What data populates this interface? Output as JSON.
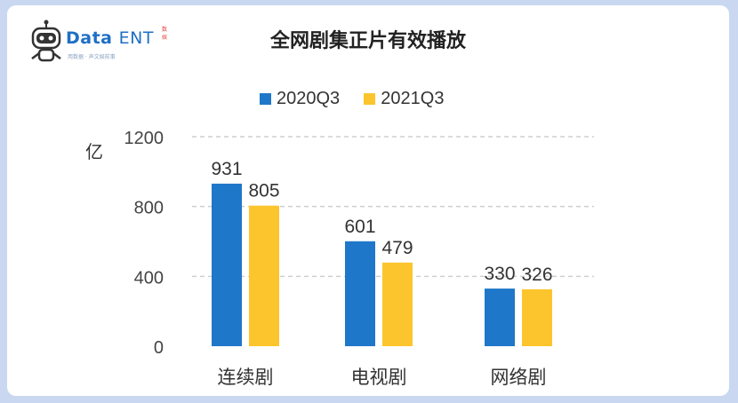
{
  "brand": {
    "name_bold": "Data",
    "name_rest": "ENT",
    "tagline": "用数据 · 声文娱前事",
    "badge": "数娱",
    "colors": {
      "blue": "#1f6fc5"
    }
  },
  "chart_data": {
    "type": "bar",
    "title": "全网剧集正片有效播放",
    "ylabel": "亿",
    "xlabel": "",
    "categories": [
      "连续剧",
      "电视剧",
      "网络剧"
    ],
    "series": [
      {
        "name": "2020Q3",
        "values": [
          931,
          601,
          330
        ],
        "color": "#1f77c9"
      },
      {
        "name": "2021Q3",
        "values": [
          805,
          479,
          326
        ],
        "color": "#fcc52d"
      }
    ],
    "ylim": [
      0,
      1200
    ],
    "yticks": [
      0,
      400,
      800,
      1200
    ],
    "grid": true,
    "grid_style": "dashed",
    "legend_position": "top",
    "data_labels": true
  }
}
